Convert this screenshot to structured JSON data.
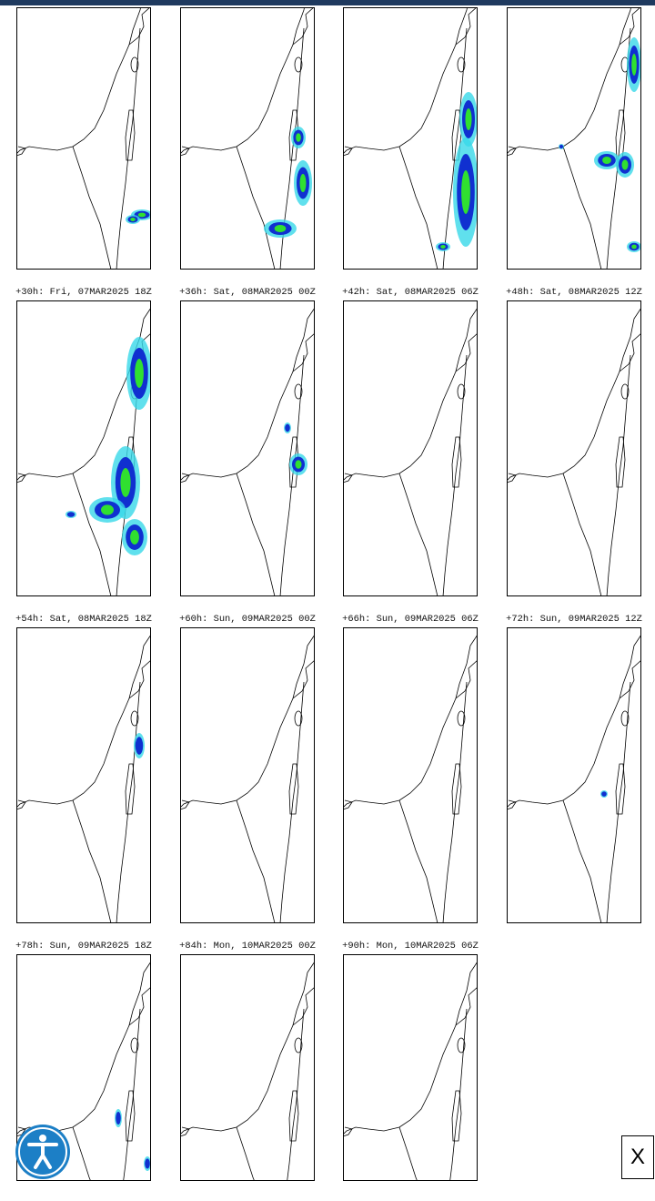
{
  "forecast_labels": [
    "+30h: Fri, 07MAR2025 18Z",
    "+36h: Sat, 08MAR2025 00Z",
    "+42h: Sat, 08MAR2025 06Z",
    "+48h: Sat, 08MAR2025 12Z",
    "+54h: Sat, 08MAR2025 18Z",
    "+60h: Sun, 09MAR2025 00Z",
    "+66h: Sun, 09MAR2025 06Z",
    "+72h: Sun, 09MAR2025 12Z",
    "+78h: Sun, 09MAR2025 18Z",
    "+84h: Mon, 10MAR2025 00Z",
    "+90h: Mon, 10MAR2025 06Z"
  ],
  "close_button": "X"
}
